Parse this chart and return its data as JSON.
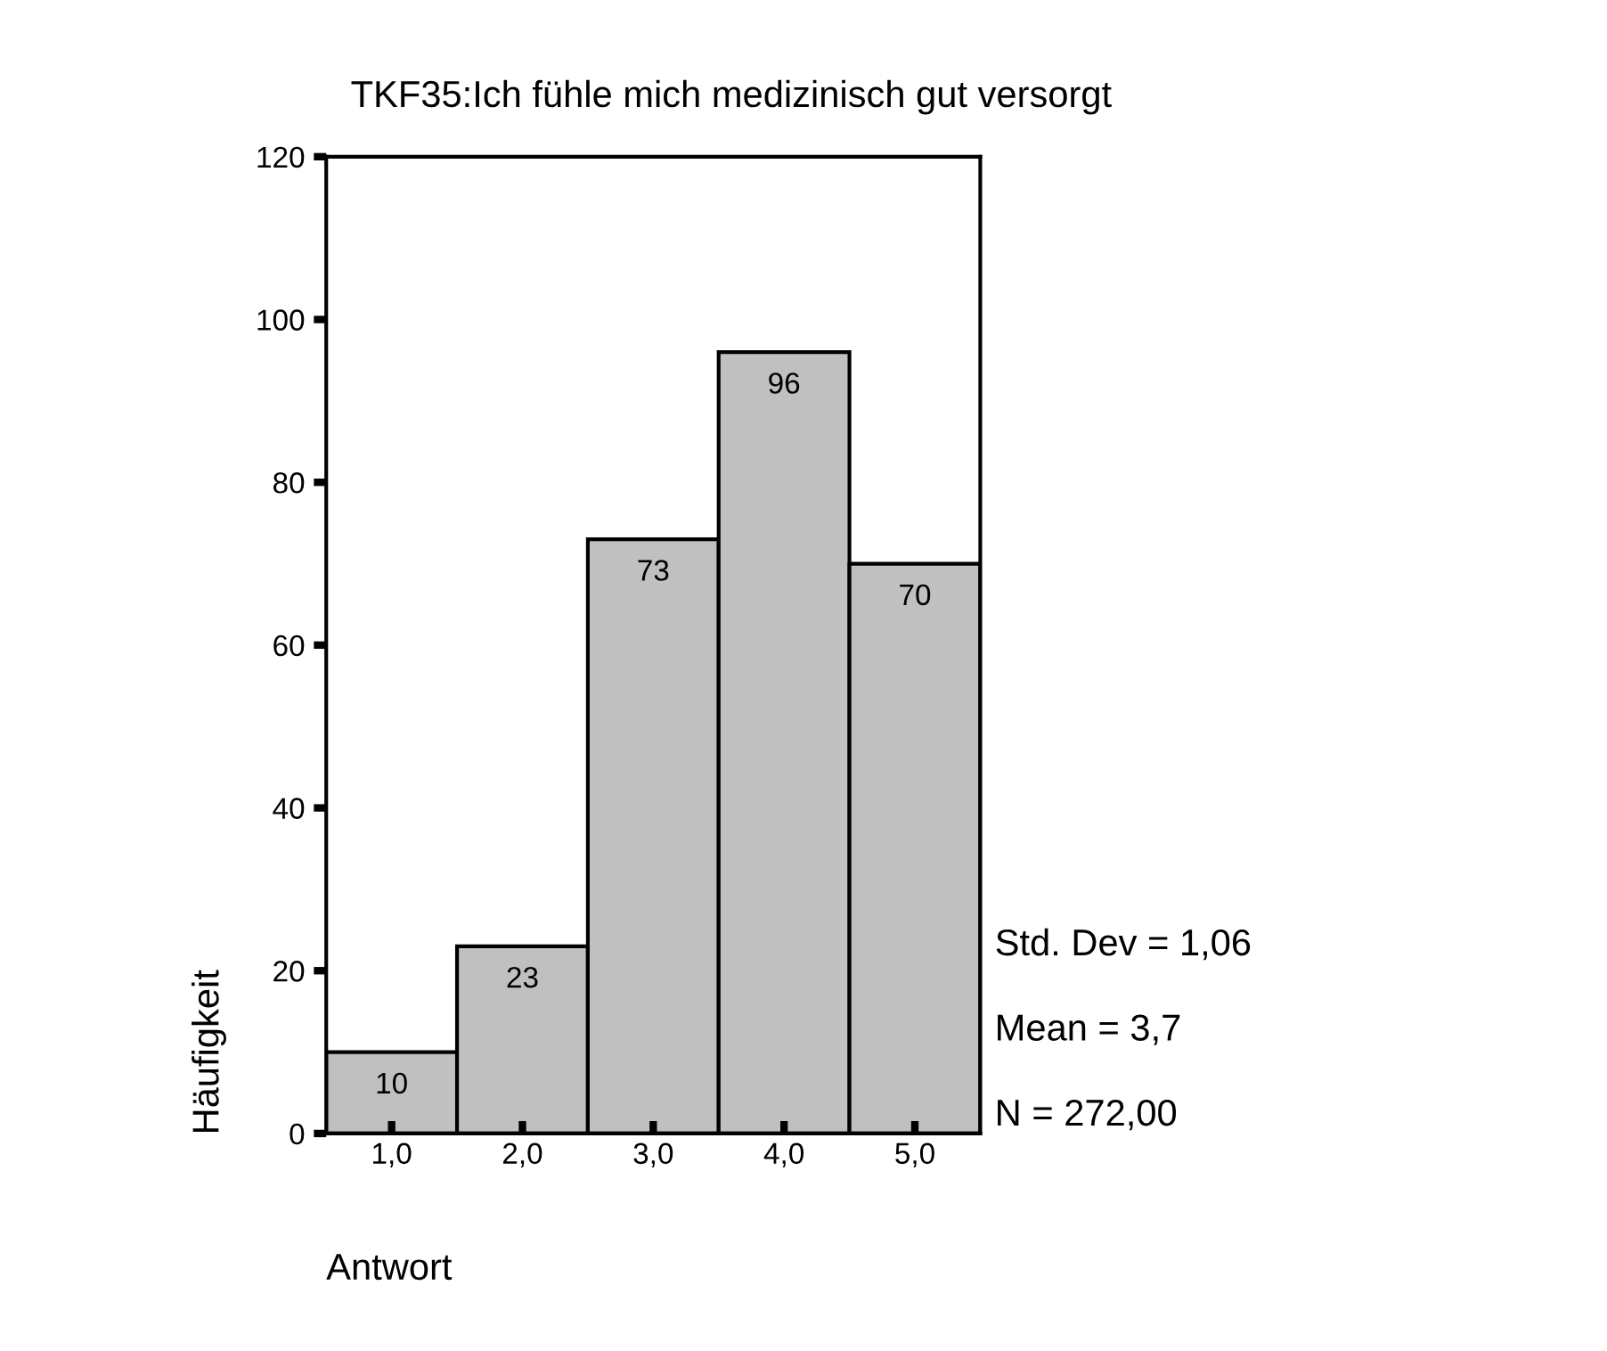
{
  "chart_data": {
    "type": "histogram",
    "title": "TKF35:Ich fühle mich medizinisch gut versorgt",
    "xlabel": "Antwort",
    "ylabel": "Häufigkeit",
    "bins": [
      0.5,
      1.5,
      2.5,
      3.5,
      4.5,
      5.5
    ],
    "values": [
      10,
      23,
      73,
      96,
      70
    ],
    "color": "#c0c0c0",
    "data_labels": true,
    "xlim": [
      0.5,
      5.5
    ],
    "xticks": [
      {
        "value": 1,
        "label": "1,0"
      },
      {
        "value": 2,
        "label": "2,0"
      },
      {
        "value": 3,
        "label": "3,0"
      },
      {
        "value": 4,
        "label": "4,0"
      },
      {
        "value": 5,
        "label": "5,0"
      }
    ],
    "ylim": [
      0,
      120
    ],
    "yticks": [
      0,
      20,
      40,
      60,
      80,
      100,
      120
    ],
    "grid": false,
    "legend": false,
    "annotations": [
      "Std. Dev = 1,06",
      "Mean = 3,7",
      "N = 272,00"
    ]
  }
}
